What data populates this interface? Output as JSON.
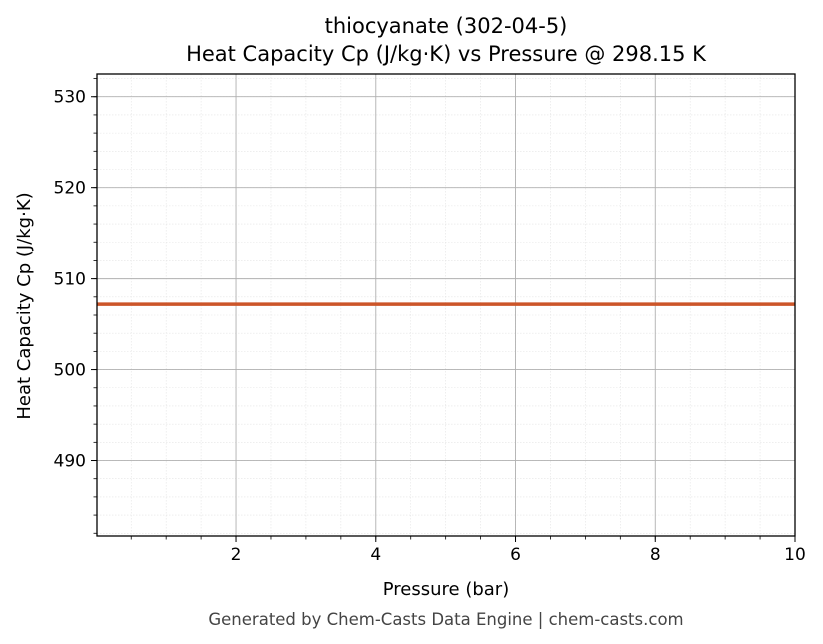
{
  "chart_data": {
    "type": "line",
    "title_line1": "thiocyanate (302-04-5)",
    "title_line2": "Heat Capacity Cp (J/kg·K) vs Pressure @ 298.15 K",
    "xlabel": "Pressure (bar)",
    "ylabel": "Heat Capacity Cp (J/kg·K)",
    "xlim": [
      0.01,
      10
    ],
    "ylim": [
      481.7,
      532.5
    ],
    "x_ticks": [
      2,
      4,
      6,
      8,
      10
    ],
    "y_ticks": [
      490,
      500,
      510,
      520,
      530
    ],
    "x_minor_step": 0.5,
    "y_minor_step": 2,
    "grid": true,
    "series": [
      {
        "color": "#cc5529",
        "x": [
          0.01,
          10
        ],
        "y": [
          507.2,
          507.2
        ]
      }
    ]
  },
  "footer": "Generated by Chem-Casts Data Engine | chem-casts.com"
}
